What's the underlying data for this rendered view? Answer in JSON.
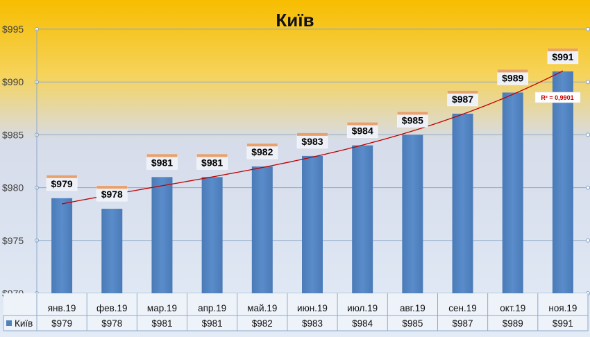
{
  "chart_data": {
    "type": "bar",
    "title": "Київ",
    "categories": [
      "янв.19",
      "фев.19",
      "мар.19",
      "апр.19",
      "май.19",
      "июн.19",
      "июл.19",
      "авг.19",
      "сен.19",
      "окт.19",
      "ноя.19"
    ],
    "series": [
      {
        "name": "Київ",
        "values": [
          979,
          978,
          981,
          981,
          982,
          983,
          984,
          985,
          987,
          989,
          991
        ],
        "labels": [
          "$979",
          "$978",
          "$981",
          "$981",
          "$982",
          "$983",
          "$984",
          "$985",
          "$987",
          "$989",
          "$991"
        ],
        "color": "#4f81bd"
      }
    ],
    "ylim": [
      970,
      995
    ],
    "yticks": [
      "$970",
      "$975",
      "$980",
      "$985",
      "$990",
      "$995"
    ],
    "ytick_values": [
      970,
      975,
      980,
      985,
      990,
      995
    ],
    "trendline": {
      "type": "polynomial",
      "color": "#c00000",
      "r_squared": "R² = 0,9901"
    },
    "grid": true,
    "legend": "data-table",
    "colors": {
      "background_top": "#f6be00",
      "background_bottom": "#dfe9f7",
      "grid": "#8ea9c8"
    }
  }
}
